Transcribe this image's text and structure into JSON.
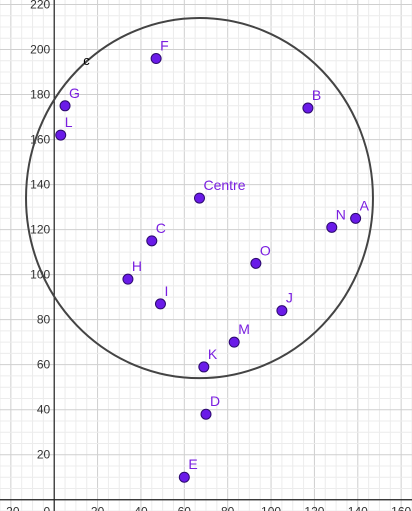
{
  "chart_data": {
    "type": "scatter",
    "title": "",
    "xlabel": "",
    "ylabel": "",
    "xlim": [
      -25,
      165
    ],
    "ylim": [
      -5,
      222
    ],
    "x_ticks": [
      -20,
      0,
      20,
      40,
      60,
      80,
      100,
      120,
      140,
      160
    ],
    "y_ticks": [
      20,
      40,
      60,
      80,
      100,
      120,
      140,
      160,
      180,
      200,
      220
    ],
    "grid": true,
    "colors": {
      "point": "#6a1be8",
      "point_stroke": "#2c0a6e",
      "label": "#7a1fe0",
      "circle": "#444444"
    },
    "points": [
      {
        "label": "A",
        "x": 139,
        "y": 125
      },
      {
        "label": "B",
        "x": 117,
        "y": 174
      },
      {
        "label": "C",
        "x": 45,
        "y": 115
      },
      {
        "label": "D",
        "x": 70,
        "y": 38
      },
      {
        "label": "E",
        "x": 60,
        "y": 10
      },
      {
        "label": "F",
        "x": 47,
        "y": 196
      },
      {
        "label": "G",
        "x": 5,
        "y": 175
      },
      {
        "label": "H",
        "x": 34,
        "y": 98
      },
      {
        "label": "I",
        "x": 49,
        "y": 87
      },
      {
        "label": "J",
        "x": 105,
        "y": 84
      },
      {
        "label": "K",
        "x": 69,
        "y": 59
      },
      {
        "label": "L",
        "x": 3,
        "y": 162
      },
      {
        "label": "M",
        "x": 83,
        "y": 70
      },
      {
        "label": "N",
        "x": 128,
        "y": 121
      },
      {
        "label": "O",
        "x": 93,
        "y": 105
      },
      {
        "label": "Centre",
        "x": 67,
        "y": 134
      }
    ],
    "circle": {
      "label": "c",
      "center": [
        67,
        134
      ],
      "radius": 80
    }
  }
}
